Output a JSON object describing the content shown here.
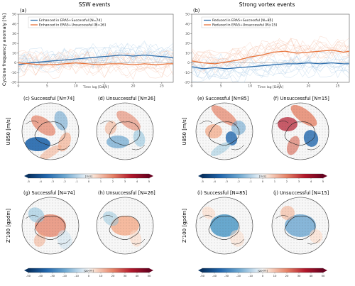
{
  "chart_data": [
    {
      "type": "line",
      "panel": "(a)",
      "title": "SSW events",
      "xlabel": "Time lag [Days]",
      "ylabel": "Cyclone frequency anomaly [%]",
      "xlim": [
        0,
        27
      ],
      "ylim": [
        -20,
        50
      ],
      "xticks": [
        "0",
        "5",
        "10",
        "15",
        "20",
        "25"
      ],
      "yticks": [
        "-20",
        "-10",
        "0",
        "10",
        "20",
        "30",
        "40",
        "50"
      ],
      "legend_position": "top-left",
      "x": [
        0,
        2,
        4,
        6,
        8,
        10,
        12,
        14,
        16,
        18,
        20,
        22,
        24,
        26,
        27
      ],
      "series": [
        {
          "name": "Enhanced in ERA5+Successful [N=74]",
          "color": "#2f6fad",
          "values": [
            -2,
            0,
            1,
            2,
            3,
            4,
            5,
            6,
            7,
            8,
            7,
            8,
            7,
            6,
            5
          ]
        },
        {
          "name": "Enhanced in ERA5+Unsuccessful [N=26]",
          "color": "#e8743b",
          "values": [
            0,
            -1,
            -2,
            -2,
            -1,
            0,
            -1,
            -2,
            -1,
            -1,
            -2,
            -1,
            -2,
            -1,
            -1
          ]
        }
      ]
    },
    {
      "type": "line",
      "panel": "(b)",
      "title": "Strong vortex events",
      "xlabel": "Time lag [Days]",
      "xlim": [
        0,
        27
      ],
      "ylim": [
        -20,
        50
      ],
      "xticks": [
        "0",
        "5",
        "10",
        "15",
        "20",
        "25"
      ],
      "yticks": [
        "-20",
        "-10",
        "0",
        "10",
        "20",
        "30",
        "40",
        "50"
      ],
      "legend_position": "top-left",
      "x": [
        0,
        2,
        4,
        6,
        8,
        10,
        12,
        14,
        16,
        18,
        20,
        22,
        24,
        26,
        27
      ],
      "series": [
        {
          "name": "Reduced in ERA5+Successful [N=85]",
          "color": "#2f6fad",
          "values": [
            -4,
            -6,
            -5,
            -6,
            -5,
            -4,
            -3,
            -2,
            -1,
            -1,
            0,
            -1,
            0,
            -1,
            -1
          ]
        },
        {
          "name": "Reduced in ERA5+Unsuccessful [N=15]",
          "color": "#e8743b",
          "values": [
            2,
            0,
            -1,
            1,
            3,
            6,
            8,
            11,
            12,
            10,
            11,
            12,
            13,
            11,
            12
          ]
        }
      ]
    }
  ],
  "maps": [
    {
      "panel": "(c)",
      "title": "Successful [N=74]",
      "variable": "U850",
      "palette": "ssw-u"
    },
    {
      "panel": "(d)",
      "title": "Unsuccessful [N=26]",
      "variable": "U850",
      "palette": "ssw-u2"
    },
    {
      "panel": "(e)",
      "title": "Successful [N=85]",
      "variable": "U850",
      "palette": "sv-u"
    },
    {
      "panel": "(f)",
      "title": "Unsuccessful [N=15]",
      "variable": "U850",
      "palette": "sv-u2"
    },
    {
      "panel": "(g)",
      "title": "Successful [N=74]",
      "variable": "Z'100",
      "palette": "ssw-z"
    },
    {
      "panel": "(h)",
      "title": "Unsuccessful [N=26]",
      "variable": "Z'100",
      "palette": "ssw-z2"
    },
    {
      "panel": "(i)",
      "title": "Successful [N=85]",
      "variable": "Z'100",
      "palette": "sv-z"
    },
    {
      "panel": "(j)",
      "title": "Unsuccessful [N=15]",
      "variable": "Z'100",
      "palette": "sv-z2"
    }
  ],
  "row_labels": {
    "u850": "U850 [m/s]",
    "z100": "Z'100 [gpdm]"
  },
  "colorbars": {
    "u850": {
      "unit": "[m/s]",
      "ticks": [
        "-5",
        "-4",
        "-3",
        "-2",
        "-1",
        "0",
        "1",
        "2",
        "3",
        "4",
        "5"
      ]
    },
    "z100": {
      "unit": "[gpdm]",
      "ticks": [
        "-50",
        "-40",
        "-30",
        "-20",
        "-10",
        "0",
        "10",
        "20",
        "30",
        "40",
        "50"
      ]
    }
  },
  "colors": {
    "blue": "#2f6fad",
    "orange": "#e8743b",
    "neg": "#2166ac",
    "pos": "#b2182b"
  }
}
